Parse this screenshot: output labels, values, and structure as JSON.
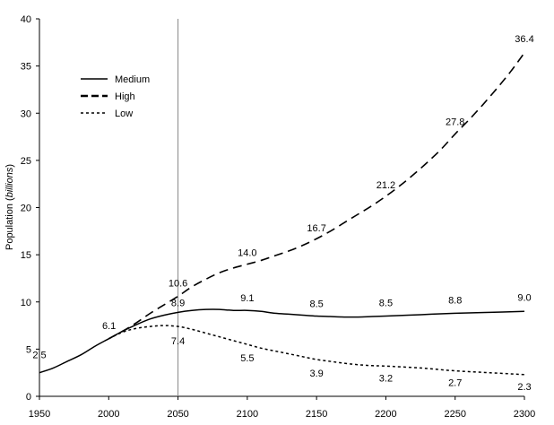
{
  "chart_data": {
    "type": "line",
    "ylabel_prefix": "Population (",
    "ylabel_em": "billions",
    "ylabel_suffix": ")",
    "xlim": [
      1950,
      2300
    ],
    "ylim": [
      0,
      40
    ],
    "x_ticks": [
      1950,
      2000,
      2050,
      2100,
      2150,
      2200,
      2250,
      2300
    ],
    "y_ticks": [
      0,
      5,
      10,
      15,
      20,
      25,
      30,
      35,
      40
    ],
    "reference_line_x": 2050,
    "legend_position": "top-left",
    "grid": false,
    "series": [
      {
        "name": "Medium",
        "dash": "solid",
        "x": [
          1950,
          1960,
          1970,
          1980,
          1990,
          2000,
          2010,
          2020,
          2030,
          2040,
          2050,
          2060,
          2070,
          2080,
          2090,
          2100,
          2110,
          2120,
          2130,
          2140,
          2150,
          2160,
          2170,
          2180,
          2190,
          2200,
          2225,
          2250,
          2275,
          2300
        ],
        "y": [
          2.5,
          3.0,
          3.7,
          4.4,
          5.3,
          6.1,
          6.9,
          7.6,
          8.2,
          8.6,
          8.9,
          9.1,
          9.2,
          9.2,
          9.1,
          9.1,
          9.0,
          8.8,
          8.7,
          8.6,
          8.5,
          8.45,
          8.4,
          8.4,
          8.45,
          8.5,
          8.65,
          8.8,
          8.9,
          9.0
        ]
      },
      {
        "name": "High",
        "dash": "long",
        "x": [
          2000,
          2010,
          2020,
          2030,
          2040,
          2050,
          2060,
          2070,
          2080,
          2090,
          2100,
          2110,
          2120,
          2130,
          2140,
          2150,
          2160,
          2170,
          2180,
          2190,
          2200,
          2210,
          2220,
          2230,
          2240,
          2250,
          2260,
          2270,
          2280,
          2290,
          2300
        ],
        "y": [
          6.1,
          6.9,
          7.8,
          8.8,
          9.7,
          10.6,
          11.6,
          12.4,
          13.1,
          13.6,
          14.0,
          14.4,
          14.9,
          15.4,
          16.0,
          16.7,
          17.5,
          18.4,
          19.3,
          20.2,
          21.2,
          22.3,
          23.5,
          24.8,
          26.2,
          27.8,
          29.3,
          30.9,
          32.6,
          34.4,
          36.4
        ]
      },
      {
        "name": "Low",
        "dash": "short",
        "x": [
          2000,
          2010,
          2020,
          2030,
          2040,
          2050,
          2060,
          2070,
          2080,
          2090,
          2100,
          2110,
          2120,
          2130,
          2140,
          2150,
          2160,
          2170,
          2180,
          2190,
          2200,
          2225,
          2250,
          2275,
          2300
        ],
        "y": [
          6.1,
          6.8,
          7.2,
          7.4,
          7.5,
          7.4,
          7.1,
          6.7,
          6.3,
          5.9,
          5.5,
          5.1,
          4.8,
          4.5,
          4.2,
          3.9,
          3.7,
          3.5,
          3.35,
          3.25,
          3.2,
          3.0,
          2.7,
          2.5,
          2.3
        ]
      }
    ],
    "data_labels": [
      {
        "text": "2.5",
        "x": 1950,
        "y": 2.5,
        "anchor": "middle",
        "dy": -16
      },
      {
        "text": "6.1",
        "x": 2000,
        "y": 6.1,
        "anchor": "end",
        "dy": -11
      },
      {
        "text": "10.6",
        "x": 2050,
        "y": 10.6,
        "anchor": "middle",
        "dy": -11
      },
      {
        "text": "8.9",
        "x": 2050,
        "y": 8.9,
        "anchor": "middle",
        "dy": -7
      },
      {
        "text": "7.4",
        "x": 2050,
        "y": 7.4,
        "anchor": "middle",
        "dy": 20
      },
      {
        "text": "14.0",
        "x": 2100,
        "y": 14.0,
        "anchor": "middle",
        "dy": -9
      },
      {
        "text": "9.1",
        "x": 2100,
        "y": 9.1,
        "anchor": "middle",
        "dy": -10
      },
      {
        "text": "5.5",
        "x": 2100,
        "y": 5.5,
        "anchor": "middle",
        "dy": 19
      },
      {
        "text": "16.7",
        "x": 2150,
        "y": 16.7,
        "anchor": "middle",
        "dy": -8
      },
      {
        "text": "8.5",
        "x": 2150,
        "y": 8.5,
        "anchor": "middle",
        "dy": -10
      },
      {
        "text": "3.9",
        "x": 2150,
        "y": 3.9,
        "anchor": "middle",
        "dy": 19
      },
      {
        "text": "21.2",
        "x": 2200,
        "y": 21.2,
        "anchor": "middle",
        "dy": -9
      },
      {
        "text": "8.5",
        "x": 2200,
        "y": 8.5,
        "anchor": "middle",
        "dy": -11
      },
      {
        "text": "3.2",
        "x": 2200,
        "y": 3.2,
        "anchor": "middle",
        "dy": 17
      },
      {
        "text": "27.8",
        "x": 2250,
        "y": 27.8,
        "anchor": "middle",
        "dy": -10
      },
      {
        "text": "8.8",
        "x": 2250,
        "y": 8.8,
        "anchor": "middle",
        "dy": -11
      },
      {
        "text": "2.7",
        "x": 2250,
        "y": 2.7,
        "anchor": "middle",
        "dy": 17
      },
      {
        "text": "36.4",
        "x": 2300,
        "y": 36.4,
        "anchor": "middle",
        "dy": -12
      },
      {
        "text": "9.0",
        "x": 2300,
        "y": 9.0,
        "anchor": "middle",
        "dy": -12
      },
      {
        "text": "2.3",
        "x": 2300,
        "y": 2.3,
        "anchor": "middle",
        "dy": 17
      }
    ]
  }
}
